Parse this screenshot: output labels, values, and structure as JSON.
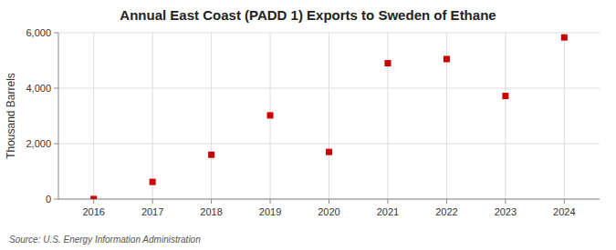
{
  "chart_data": {
    "type": "scatter",
    "title": "Annual East Coast (PADD 1) Exports to Sweden of Ethane",
    "ylabel": "Thousand Barrels",
    "source": "Source: U.S. Energy Information Administration",
    "x": [
      2016,
      2017,
      2018,
      2019,
      2020,
      2021,
      2022,
      2023,
      2024
    ],
    "values": [
      3,
      620,
      1600,
      3020,
      1700,
      4900,
      5050,
      3720,
      5830
    ],
    "color": "#cc0000",
    "marker": "square",
    "xlim": [
      2015.4,
      2024.6
    ],
    "xticks": [
      2016,
      2017,
      2018,
      2019,
      2020,
      2021,
      2022,
      2023,
      2024
    ],
    "ylim": [
      0,
      6000
    ],
    "yticks": [
      0,
      {
        "value": 2000,
        "label": "2,000"
      },
      {
        "value": 4000,
        "label": "4,000"
      },
      {
        "value": 6000,
        "label": "6,000"
      }
    ],
    "grid": true
  }
}
